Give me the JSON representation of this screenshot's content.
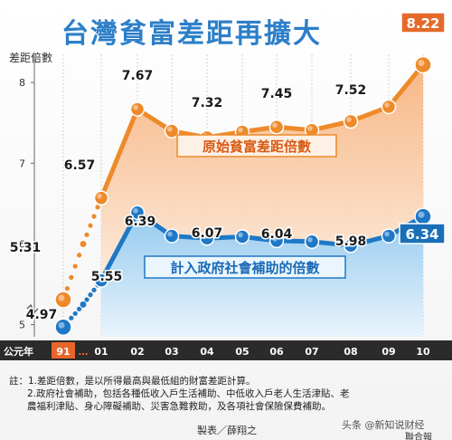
{
  "title": "台灣貧富差距再擴大",
  "colors": {
    "orange": "#ee8a2a",
    "orange_dark": "#e06818",
    "blue": "#1e78c6",
    "blue_dark": "#1a6ab6",
    "title_text": "#2d7fc8",
    "axis_band": "#2b2b2b",
    "label_box_blue": "#1a6fb8",
    "label_box_orange": "#e56a2a"
  },
  "credits": {
    "maker": "製表／薛翔之",
    "watermark": "头条 @新知说财经",
    "source": "聯合報"
  },
  "notes": [
    "註：1.差距倍數，是以所得最高與最低組的財富差距計算。",
    "2.政府社會補助，包括各種低收入戶生活補助、中低收入戶老人生活津貼、老",
    "農福利津貼、身心障礙補助、災害急難救助，及各項社會保險保費補助。"
  ],
  "chart_data": {
    "type": "line",
    "title": "台灣貧富差距再擴大",
    "ylabel": "差距倍數",
    "xlabel": "公元年",
    "ylim": [
      4.85,
      8.35
    ],
    "yticks": [
      5,
      6,
      7,
      8
    ],
    "categories": [
      "91",
      "…",
      "01",
      "02",
      "03",
      "04",
      "05",
      "06",
      "07",
      "08",
      "09",
      "10"
    ],
    "series": [
      {
        "name": "原始貧富差距倍數",
        "color": "#ee8a2a",
        "values": [
          5.31,
          6.0,
          6.57,
          7.67,
          7.4,
          7.32,
          7.39,
          7.45,
          7.41,
          7.52,
          7.7,
          8.22
        ],
        "labels": {
          "0": "5.31",
          "2": "6.57",
          "3": "7.67",
          "5": "7.32",
          "7": "7.45",
          "9": "7.52",
          "11": "8.22"
        }
      },
      {
        "name": "計入政府社會補助的倍數",
        "color": "#1e78c6",
        "values": [
          4.97,
          5.25,
          5.55,
          6.39,
          6.1,
          6.07,
          6.09,
          6.04,
          6.03,
          5.98,
          6.1,
          6.34
        ],
        "labels": {
          "0": "4.97",
          "2": "5.55",
          "3": "6.39",
          "5": "6.07",
          "7": "6.04",
          "9": "5.98",
          "11": "6.34"
        }
      }
    ],
    "dotted_until_index": 2
  }
}
